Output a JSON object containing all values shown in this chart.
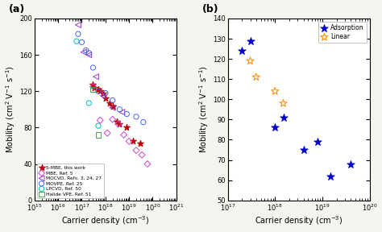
{
  "panel_a": {
    "title": "(a)",
    "xlabel": "Carrier density (cm$^{-3}$)",
    "ylabel": "Mobility (cm$^2$ V$^{-1}$ s$^{-1}$)",
    "xlim": [
      1000000000000000.0,
      1e+21
    ],
    "ylim": [
      0,
      200
    ],
    "yticks": [
      0,
      40,
      80,
      120,
      160,
      200
    ],
    "series": {
      "SMBE": {
        "x": [
          3e+17,
          3.5e+17,
          5e+17,
          6e+17,
          8e+17,
          1e+18,
          1.5e+18,
          2e+18,
          3e+18,
          4e+18,
          8e+18,
          1.5e+19,
          3e+19
        ],
        "y": [
          127,
          124,
          122,
          120,
          118,
          112,
          107,
          103,
          87,
          84,
          80,
          65,
          63
        ],
        "color": "#c00000",
        "marker": "*",
        "label": "S-MBE, this work",
        "markersize": 6,
        "filled": true
      },
      "MBE": {
        "x": [
          3e+17,
          6e+17,
          1.2e+18,
          2e+18,
          3.5e+18,
          6e+18,
          1e+19,
          2e+19,
          3.5e+19,
          6e+19
        ],
        "y": [
          125,
          88,
          74,
          89,
          84,
          72,
          65,
          55,
          50,
          40
        ],
        "color": "#cc44cc",
        "marker": "D",
        "label": "MBE, Ref. 5",
        "markersize": 4,
        "filled": false
      },
      "MOCVD": {
        "x": [
          7e+16,
          1.2e+17,
          2e+17,
          4e+17,
          8e+17,
          2e+18,
          5e+18
        ],
        "y": [
          193,
          163,
          160,
          136,
          115,
          102,
          97
        ],
        "color": "#9933cc",
        "marker": "<",
        "label": "MOCVD, Refs. 3, 24, 27",
        "markersize": 5,
        "filled": false
      },
      "MOVPE": {
        "x": [
          7e+16,
          1e+17,
          1.5e+17,
          2e+17,
          3e+17,
          5e+17,
          1e+18,
          2e+18,
          4e+18,
          8e+18,
          2e+19,
          4e+19
        ],
        "y": [
          183,
          174,
          165,
          162,
          146,
          120,
          118,
          110,
          100,
          95,
          92,
          86
        ],
        "color": "#4466ff",
        "marker": "o",
        "label": "MOVPE, Ref. 25",
        "markersize": 4.5,
        "filled": false
      },
      "LPCVD": {
        "x": [
          6e+16,
          2e+17,
          5e+17
        ],
        "y": [
          175,
          107,
          82
        ],
        "color": "#00bbbb",
        "marker": "o",
        "label": "LPCVD, Ref. 50",
        "markersize": 4.5,
        "filled": false
      },
      "HalideVPE": {
        "x": [
          3e+17,
          5e+17
        ],
        "y": [
          122,
          72
        ],
        "color": "#44aa44",
        "marker": "s",
        "label": "Halide VPE, Ref. 51",
        "markersize": 4.5,
        "filled": false
      }
    }
  },
  "panel_b": {
    "title": "(b)",
    "xlabel": "Carrier density (cm$^{-3}$)",
    "ylabel": "Mobility (cm$^2$ V$^{-1}$ s$^{-1}$)",
    "xlim": [
      1e+17,
      1e+20
    ],
    "ylim": [
      50,
      140
    ],
    "yticks": [
      50,
      60,
      70,
      80,
      90,
      100,
      110,
      120,
      130,
      140
    ],
    "series": {
      "Adsorption": {
        "x": [
          2e+17,
          3e+17,
          1e+18,
          1.5e+18,
          4e+18,
          8e+18,
          1.5e+19,
          4e+19
        ],
        "y": [
          124,
          129,
          86,
          91,
          75,
          79,
          62,
          68
        ],
        "color": "#0000cc",
        "marker": "*",
        "label": "Adsorption",
        "markersize": 7,
        "filled": true
      },
      "Linear": {
        "x": [
          3e+17,
          4e+17,
          1e+18,
          1.5e+18
        ],
        "y": [
          119,
          111,
          104,
          98
        ],
        "color": "#ff8800",
        "marker": "*",
        "label": "Linear",
        "markersize": 7,
        "filled": false
      }
    }
  },
  "bg_color": "#f5f5f0",
  "axes_bg": "#ffffff"
}
